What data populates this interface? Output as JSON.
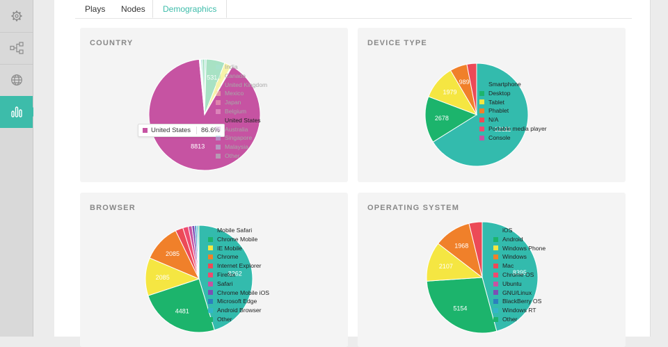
{
  "tabs": [
    {
      "label": "Plays"
    },
    {
      "label": "Nodes"
    },
    {
      "label": "Demographics"
    }
  ],
  "sidebar": {
    "items": [
      {
        "icon": "gear-icon"
      },
      {
        "icon": "network-icon"
      },
      {
        "icon": "globe-icon"
      },
      {
        "icon": "bar-chart-icon"
      }
    ]
  },
  "colors": {
    "accent": "#3dbcaa"
  },
  "chart_data": [
    {
      "id": "country",
      "type": "pie",
      "title": "COUNTRY",
      "faded": true,
      "highlight": "United States",
      "tooltip": {
        "label": "United States",
        "percent": "86.6%"
      },
      "slices": [
        {
          "label": "India",
          "value": 45,
          "color": "#a8e2d4"
        },
        {
          "label": "Canada",
          "value": 531,
          "color": "#a8e2c4",
          "showLabel": true
        },
        {
          "label": "United Kingdom",
          "value": 205,
          "color": "#f7f3a9"
        },
        {
          "label": "Mexico",
          "value": 12,
          "color": "#f7d3a6"
        },
        {
          "label": "Japan",
          "value": 10,
          "color": "#f6b5b5"
        },
        {
          "label": "Belgium",
          "value": 8,
          "color": "#f0b5cf"
        },
        {
          "label": "United States",
          "value": 8813,
          "color": "#c653a2",
          "showLabel": true
        },
        {
          "label": "Australia",
          "value": 20,
          "color": "#d9b9e1"
        },
        {
          "label": "Singapore",
          "value": 20,
          "color": "#a8c8e6"
        },
        {
          "label": "Malaysia",
          "value": 40,
          "color": "#a8dede"
        },
        {
          "label": "Other",
          "value": 70,
          "color": "#a8e2c4"
        }
      ]
    },
    {
      "id": "device",
      "type": "pie",
      "title": "DEVICE TYPE",
      "slices": [
        {
          "label": "Smartphone",
          "value": 12111,
          "color": "#33bbad",
          "showLabel": true
        },
        {
          "label": "Desktop",
          "value": 2678,
          "color": "#1cb46c",
          "showLabel": true
        },
        {
          "label": "Tablet",
          "value": 1979,
          "color": "#f5e642",
          "showLabel": true
        },
        {
          "label": "Phablet",
          "value": 989,
          "color": "#f0802a",
          "showLabel": true
        },
        {
          "label": "N/A",
          "value": 560,
          "color": "#ec4a57"
        },
        {
          "label": "Portable media player",
          "value": 0,
          "color": "#ee4b6f"
        },
        {
          "label": "Console",
          "value": 0,
          "color": "#c653a2"
        }
      ]
    },
    {
      "id": "browser",
      "type": "pie",
      "title": "BROWSER",
      "slices": [
        {
          "label": "Mobile Safari",
          "value": 8262,
          "color": "#33bbad",
          "showLabel": true
        },
        {
          "label": "Chrome Mobile",
          "value": 4481,
          "color": "#1cb46c",
          "showLabel": true
        },
        {
          "label": "IE Mobile",
          "value": 2085,
          "color": "#f5e642",
          "showLabel": true
        },
        {
          "label": "Chrome",
          "value": 2085,
          "color": "#f0802a",
          "showLabel": true
        },
        {
          "label": "Internet Explorer",
          "value": 420,
          "color": "#ec4a57"
        },
        {
          "label": "Firefox",
          "value": 300,
          "color": "#ee4b6f"
        },
        {
          "label": "Safari",
          "value": 200,
          "color": "#c653a2"
        },
        {
          "label": "Chrome Mobile iOS",
          "value": 150,
          "color": "#7c4fb5"
        },
        {
          "label": "Microsoft Edge",
          "value": 100,
          "color": "#2c7fbd"
        },
        {
          "label": "Android Browser",
          "value": 80,
          "color": "#33b5c8"
        },
        {
          "label": "Other",
          "value": 60,
          "color": "#1cb46c"
        }
      ]
    },
    {
      "id": "os",
      "type": "pie",
      "title": "OPERATING SYSTEM",
      "slices": [
        {
          "label": "iOS",
          "value": 8395,
          "color": "#33bbad",
          "showLabel": true
        },
        {
          "label": "Android",
          "value": 5154,
          "color": "#1cb46c",
          "showLabel": true
        },
        {
          "label": "Windows Phone",
          "value": 2107,
          "color": "#f5e642",
          "showLabel": true
        },
        {
          "label": "Windows",
          "value": 1968,
          "color": "#f0802a",
          "showLabel": true
        },
        {
          "label": "Mac",
          "value": 700,
          "color": "#ec4a57"
        },
        {
          "label": "Chrome OS",
          "value": 0,
          "color": "#ee4b6f"
        },
        {
          "label": "Ubuntu",
          "value": 0,
          "color": "#c653a2"
        },
        {
          "label": "GNU/Linux",
          "value": 0,
          "color": "#7c4fb5"
        },
        {
          "label": "BlackBerry OS",
          "value": 0,
          "color": "#2c7fbd"
        },
        {
          "label": "Windows RT",
          "value": 0,
          "color": "#33b5c8"
        },
        {
          "label": "Other",
          "value": 0,
          "color": "#1cb46c"
        }
      ]
    }
  ]
}
